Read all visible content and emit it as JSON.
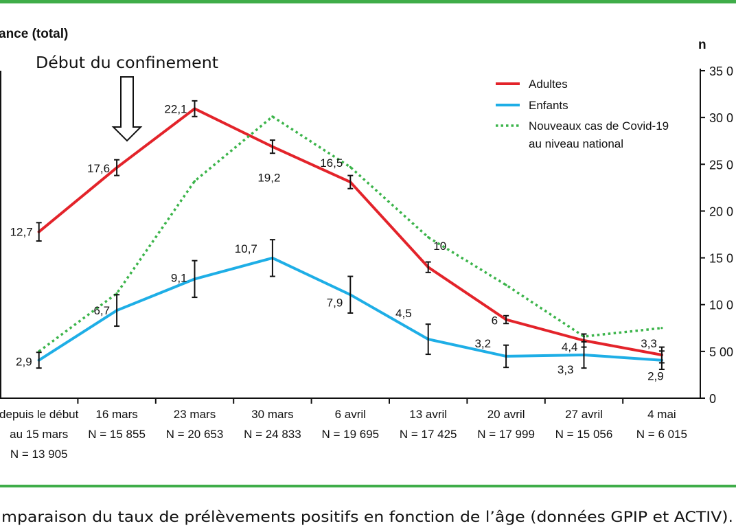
{
  "figure": {
    "annotation": "Début du confinement",
    "caption": "mparaison du taux de prélèvements positifs en fonction de l’âge (données GPIP et ACTIV)."
  },
  "colors": {
    "frame": "#3fad49",
    "axis": "#111111",
    "error_bar": "#111111"
  },
  "chart_data": {
    "type": "line",
    "ylabel": "ance (total)",
    "y2label": "n",
    "ylim": [
      0,
      25
    ],
    "y2lim": [
      0,
      35000
    ],
    "y2_ticks": [
      0,
      5000,
      10000,
      15000,
      20000,
      25000,
      30000,
      35000
    ],
    "y2_tick_labels": [
      "0",
      "5 00",
      "10 0",
      "15 0",
      "20 0",
      "25 0",
      "30 0",
      "35 0"
    ],
    "categories": [
      [
        "depuis le début",
        "au 15 mars"
      ],
      [
        "16 mars"
      ],
      [
        "23 mars"
      ],
      [
        "30 mars"
      ],
      [
        "6 avril"
      ],
      [
        "13 avril"
      ],
      [
        "20 avril"
      ],
      [
        "27 avril"
      ],
      [
        "4 mai"
      ]
    ],
    "sample_sizes": [
      "N = 13 905",
      "N = 15 855",
      "N = 20 653",
      "N = 24 833",
      "N = 19 695",
      "N = 17 425",
      "N = 17 999",
      "N = 15 056",
      "N = 6 015"
    ],
    "legend_position": "top-right",
    "grid": false,
    "series": [
      {
        "name": "Adultes",
        "axis": "left",
        "color": "#e3232a",
        "style": "solid",
        "values": [
          12.7,
          17.6,
          22.1,
          19.2,
          16.5,
          10,
          6,
          4.4,
          3.3
        ],
        "labels": [
          "12,7",
          "17,6",
          "22,1",
          "19,2",
          "16,5",
          "10",
          "6",
          "4,4",
          "3,3"
        ],
        "error": [
          0.7,
          0.6,
          0.6,
          0.5,
          0.5,
          0.4,
          0.3,
          0.5,
          0.6
        ]
      },
      {
        "name": "Enfants",
        "axis": "left",
        "color": "#1eaee6",
        "style": "solid",
        "values": [
          2.9,
          6.7,
          9.1,
          10.7,
          7.9,
          4.5,
          3.2,
          3.3,
          2.9
        ],
        "labels": [
          "2,9",
          "6,7",
          "9,1",
          "10,7",
          "7,9",
          "4,5",
          "3,2",
          "3,3",
          "2,9"
        ],
        "error": [
          0.6,
          1.2,
          1.4,
          1.4,
          1.4,
          1.15,
          0.85,
          1.0,
          0.7
        ]
      },
      {
        "name_lines": [
          "Nouveaux cas de Covid-19",
          "au niveau national"
        ],
        "axis": "right",
        "color": "#3bb44a",
        "style": "dotted",
        "values": [
          5000,
          11200,
          23200,
          30100,
          24700,
          17200,
          12100,
          6600,
          7500
        ]
      }
    ]
  }
}
